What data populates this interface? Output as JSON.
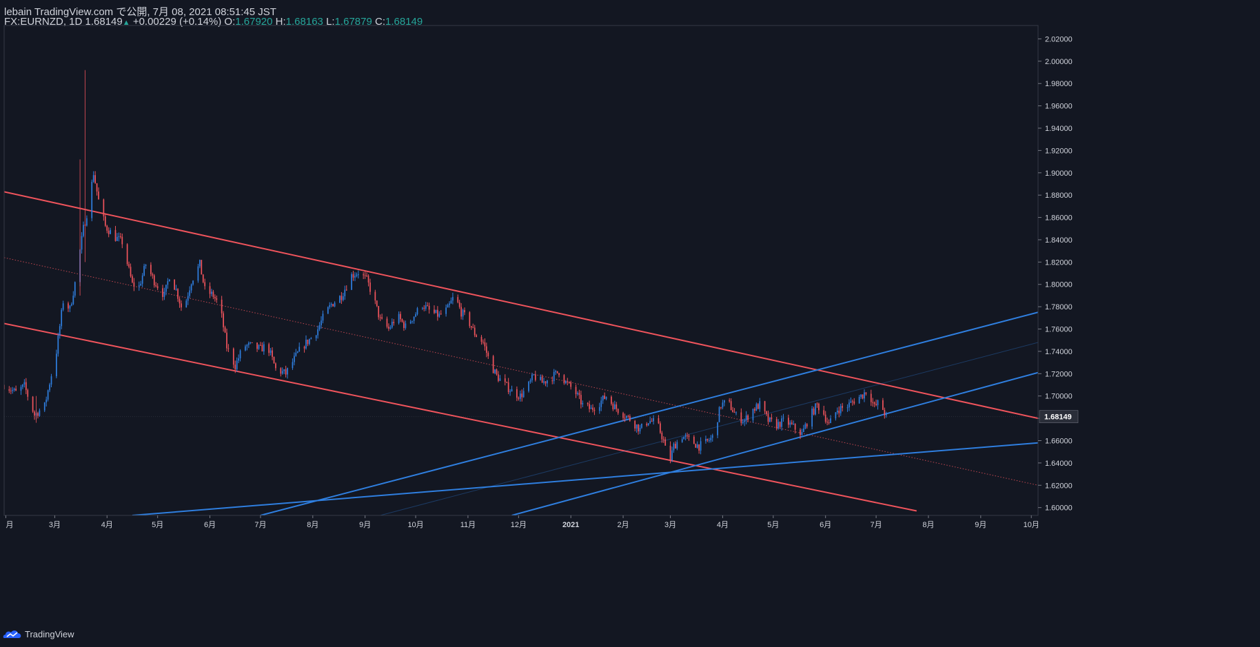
{
  "header": {
    "line1": "lebain TradingView.com で公開, 7月 08, 2021 08:51:45 JST",
    "symbol": "FX:EURNZD, 1D",
    "last": "1.68149",
    "change_arrow": "▲",
    "change": "+0.00229 (+0.14%)",
    "o_label": "O:",
    "o": "1.67920",
    "h_label": "H:",
    "h": "1.68163",
    "l_label": "L:",
    "l": "1.67879",
    "c_label": "C:",
    "c": "1.68149"
  },
  "footer": {
    "brand": "TradingView",
    "logo_icon": "tradingview-cloud-icon"
  },
  "colors": {
    "bg": "#131722",
    "up": "#2f7fe0",
    "down": "#f0545c",
    "grid": "#2a2e39",
    "axis_text": "#d1d4dc",
    "support": "#2f7fe0",
    "channel": "#f0545c"
  },
  "chart_data": {
    "type": "candlestick",
    "symbol": "FX:EURNZD",
    "interval": "1D",
    "last_price_label": "1.68149",
    "y_ticks": [
      "1.60000",
      "1.62000",
      "1.64000",
      "1.66000",
      "1.68000",
      "1.70000",
      "1.72000",
      "1.74000",
      "1.76000",
      "1.78000",
      "1.80000",
      "1.82000",
      "1.84000",
      "1.86000",
      "1.88000",
      "1.90000",
      "1.92000",
      "1.94000",
      "1.96000",
      "1.98000",
      "2.00000",
      "2.02000"
    ],
    "ylim": [
      1.593,
      2.032
    ],
    "x_ticks": [
      {
        "label": "月",
        "date": "2020-02-01"
      },
      {
        "label": "3月",
        "date": "2020-03-01"
      },
      {
        "label": "4月",
        "date": "2020-04-01"
      },
      {
        "label": "5月",
        "date": "2020-05-01"
      },
      {
        "label": "6月",
        "date": "2020-06-01"
      },
      {
        "label": "7月",
        "date": "2020-07-01"
      },
      {
        "label": "8月",
        "date": "2020-08-01"
      },
      {
        "label": "9月",
        "date": "2020-09-01"
      },
      {
        "label": "10月",
        "date": "2020-10-01"
      },
      {
        "label": "11月",
        "date": "2020-11-01"
      },
      {
        "label": "12月",
        "date": "2020-12-01"
      },
      {
        "label": "2021",
        "date": "2021-01-01"
      },
      {
        "label": "2月",
        "date": "2021-02-01"
      },
      {
        "label": "3月",
        "date": "2021-03-01"
      },
      {
        "label": "4月",
        "date": "2021-04-01"
      },
      {
        "label": "5月",
        "date": "2021-05-01"
      },
      {
        "label": "6月",
        "date": "2021-06-01"
      },
      {
        "label": "7月",
        "date": "2021-07-01"
      },
      {
        "label": "8月",
        "date": "2021-08-01"
      },
      {
        "label": "9月",
        "date": "2021-09-01"
      },
      {
        "label": "10月",
        "date": "2021-10-01"
      }
    ],
    "xlim": [
      "2020-01-31",
      "2021-10-05"
    ],
    "price_path": [
      [
        "2020-01-31",
        1.71
      ],
      [
        "2020-02-07",
        1.703
      ],
      [
        "2020-02-12",
        1.709
      ],
      [
        "2020-02-18",
        1.683
      ],
      [
        "2020-02-24",
        1.691
      ],
      [
        "2020-03-02",
        1.74
      ],
      [
        "2020-03-06",
        1.785
      ],
      [
        "2020-03-10",
        1.778
      ],
      [
        "2020-03-13",
        1.801
      ],
      [
        "2020-03-18",
        1.85
      ],
      [
        "2020-03-21",
        1.87
      ],
      [
        "2020-03-24",
        1.9
      ],
      [
        "2020-03-27",
        1.875
      ],
      [
        "2020-03-31",
        1.852
      ],
      [
        "2020-04-06",
        1.842
      ],
      [
        "2020-04-10",
        1.838
      ],
      [
        "2020-04-16",
        1.8
      ],
      [
        "2020-04-20",
        1.798
      ],
      [
        "2020-04-24",
        1.818
      ],
      [
        "2020-04-29",
        1.803
      ],
      [
        "2020-05-05",
        1.79
      ],
      [
        "2020-05-08",
        1.808
      ],
      [
        "2020-05-12",
        1.795
      ],
      [
        "2020-05-16",
        1.775
      ],
      [
        "2020-05-21",
        1.803
      ],
      [
        "2020-05-26",
        1.818
      ],
      [
        "2020-05-29",
        1.795
      ],
      [
        "2020-06-03",
        1.79
      ],
      [
        "2020-06-07",
        1.78
      ],
      [
        "2020-06-11",
        1.744
      ],
      [
        "2020-06-16",
        1.727
      ],
      [
        "2020-06-21",
        1.745
      ],
      [
        "2020-06-25",
        1.745
      ],
      [
        "2020-07-01",
        1.742
      ],
      [
        "2020-07-05",
        1.746
      ],
      [
        "2020-07-10",
        1.724
      ],
      [
        "2020-07-16",
        1.72
      ],
      [
        "2020-07-21",
        1.733
      ],
      [
        "2020-07-25",
        1.743
      ],
      [
        "2020-07-31",
        1.752
      ],
      [
        "2020-08-04",
        1.76
      ],
      [
        "2020-08-07",
        1.77
      ],
      [
        "2020-08-12",
        1.782
      ],
      [
        "2020-08-18",
        1.79
      ],
      [
        "2020-08-24",
        1.808
      ],
      [
        "2020-08-28",
        1.811
      ],
      [
        "2020-09-02",
        1.804
      ],
      [
        "2020-09-06",
        1.788
      ],
      [
        "2020-09-10",
        1.768
      ],
      [
        "2020-09-15",
        1.76
      ],
      [
        "2020-09-20",
        1.772
      ],
      [
        "2020-09-25",
        1.762
      ],
      [
        "2020-09-30",
        1.772
      ],
      [
        "2020-10-05",
        1.782
      ],
      [
        "2020-10-10",
        1.775
      ],
      [
        "2020-10-15",
        1.772
      ],
      [
        "2020-10-20",
        1.778
      ],
      [
        "2020-10-24",
        1.79
      ],
      [
        "2020-10-28",
        1.775
      ],
      [
        "2020-11-01",
        1.768
      ],
      [
        "2020-11-05",
        1.756
      ],
      [
        "2020-11-10",
        1.748
      ],
      [
        "2020-11-14",
        1.73
      ],
      [
        "2020-11-18",
        1.718
      ],
      [
        "2020-11-23",
        1.71
      ],
      [
        "2020-11-28",
        1.703
      ],
      [
        "2020-12-02",
        1.7
      ],
      [
        "2020-12-06",
        1.707
      ],
      [
        "2020-12-10",
        1.718
      ],
      [
        "2020-12-15",
        1.712
      ],
      [
        "2020-12-20",
        1.716
      ],
      [
        "2020-12-25",
        1.722
      ],
      [
        "2020-12-29",
        1.712
      ],
      [
        "2021-01-03",
        1.705
      ],
      [
        "2021-01-08",
        1.692
      ],
      [
        "2021-01-13",
        1.688
      ],
      [
        "2021-01-18",
        1.694
      ],
      [
        "2021-01-22",
        1.7
      ],
      [
        "2021-01-27",
        1.69
      ],
      [
        "2021-02-01",
        1.684
      ],
      [
        "2021-02-06",
        1.678
      ],
      [
        "2021-02-11",
        1.67
      ],
      [
        "2021-02-16",
        1.678
      ],
      [
        "2021-02-21",
        1.676
      ],
      [
        "2021-02-25",
        1.66
      ],
      [
        "2021-02-28",
        1.638
      ],
      [
        "2021-03-03",
        1.655
      ],
      [
        "2021-03-08",
        1.664
      ],
      [
        "2021-03-13",
        1.66
      ],
      [
        "2021-03-18",
        1.655
      ],
      [
        "2021-03-22",
        1.658
      ],
      [
        "2021-03-26",
        1.663
      ],
      [
        "2021-03-31",
        1.692
      ],
      [
        "2021-04-04",
        1.695
      ],
      [
        "2021-04-09",
        1.682
      ],
      [
        "2021-04-14",
        1.678
      ],
      [
        "2021-04-19",
        1.688
      ],
      [
        "2021-04-23",
        1.692
      ],
      [
        "2021-04-28",
        1.678
      ],
      [
        "2021-05-03",
        1.674
      ],
      [
        "2021-05-08",
        1.678
      ],
      [
        "2021-05-13",
        1.672
      ],
      [
        "2021-05-18",
        1.666
      ],
      [
        "2021-05-22",
        1.68
      ],
      [
        "2021-05-27",
        1.692
      ],
      [
        "2021-05-31",
        1.684
      ],
      [
        "2021-06-03",
        1.674
      ],
      [
        "2021-06-08",
        1.688
      ],
      [
        "2021-06-13",
        1.69
      ],
      [
        "2021-06-18",
        1.696
      ],
      [
        "2021-06-23",
        1.701
      ],
      [
        "2021-06-26",
        1.706
      ],
      [
        "2021-06-30",
        1.69
      ],
      [
        "2021-07-03",
        1.695
      ],
      [
        "2021-07-07",
        1.6815
      ]
    ],
    "spikes": [
      {
        "date": "2020-03-19",
        "high": 1.992,
        "low": 1.82
      },
      {
        "date": "2020-03-16",
        "high": 1.912,
        "low": 1.79
      },
      {
        "date": "2020-02-19",
        "high": 1.7,
        "low": 1.676
      }
    ],
    "trendlines": [
      {
        "role": "channel-upper",
        "color": "#f0545c",
        "width": 2,
        "dash": false,
        "p1": [
          "2020-01-31",
          1.883
        ],
        "p2": [
          "2021-10-05",
          1.68
        ]
      },
      {
        "role": "channel-lower",
        "color": "#f0545c",
        "width": 2,
        "dash": false,
        "p1": [
          "2020-01-31",
          1.765
        ],
        "p2": [
          "2021-07-25",
          1.597
        ]
      },
      {
        "role": "channel-mid",
        "color": "#f0545c",
        "width": 1,
        "dash": true,
        "p1": [
          "2020-01-31",
          1.824
        ],
        "p2": [
          "2021-10-05",
          1.62
        ]
      },
      {
        "role": "support-steep",
        "color": "#2f7fe0",
        "width": 2,
        "dash": false,
        "p1": [
          "2020-07-01",
          1.593
        ],
        "p2": [
          "2021-10-05",
          1.775
        ]
      },
      {
        "role": "support-mid",
        "color": "#2f7fe0",
        "width": 2,
        "dash": false,
        "p1": [
          "2020-11-27",
          1.593
        ],
        "p2": [
          "2021-10-05",
          1.721
        ]
      },
      {
        "role": "support-flat",
        "color": "#2f7fe0",
        "width": 2,
        "dash": false,
        "p1": [
          "2020-04-16",
          1.593
        ],
        "p2": [
          "2021-10-05",
          1.658
        ]
      },
      {
        "role": "support-faint",
        "color": "#2f7fe0",
        "width": 1,
        "dash": false,
        "faint": true,
        "p1": [
          "2020-09-10",
          1.593
        ],
        "p2": [
          "2021-10-05",
          1.748
        ]
      }
    ]
  }
}
